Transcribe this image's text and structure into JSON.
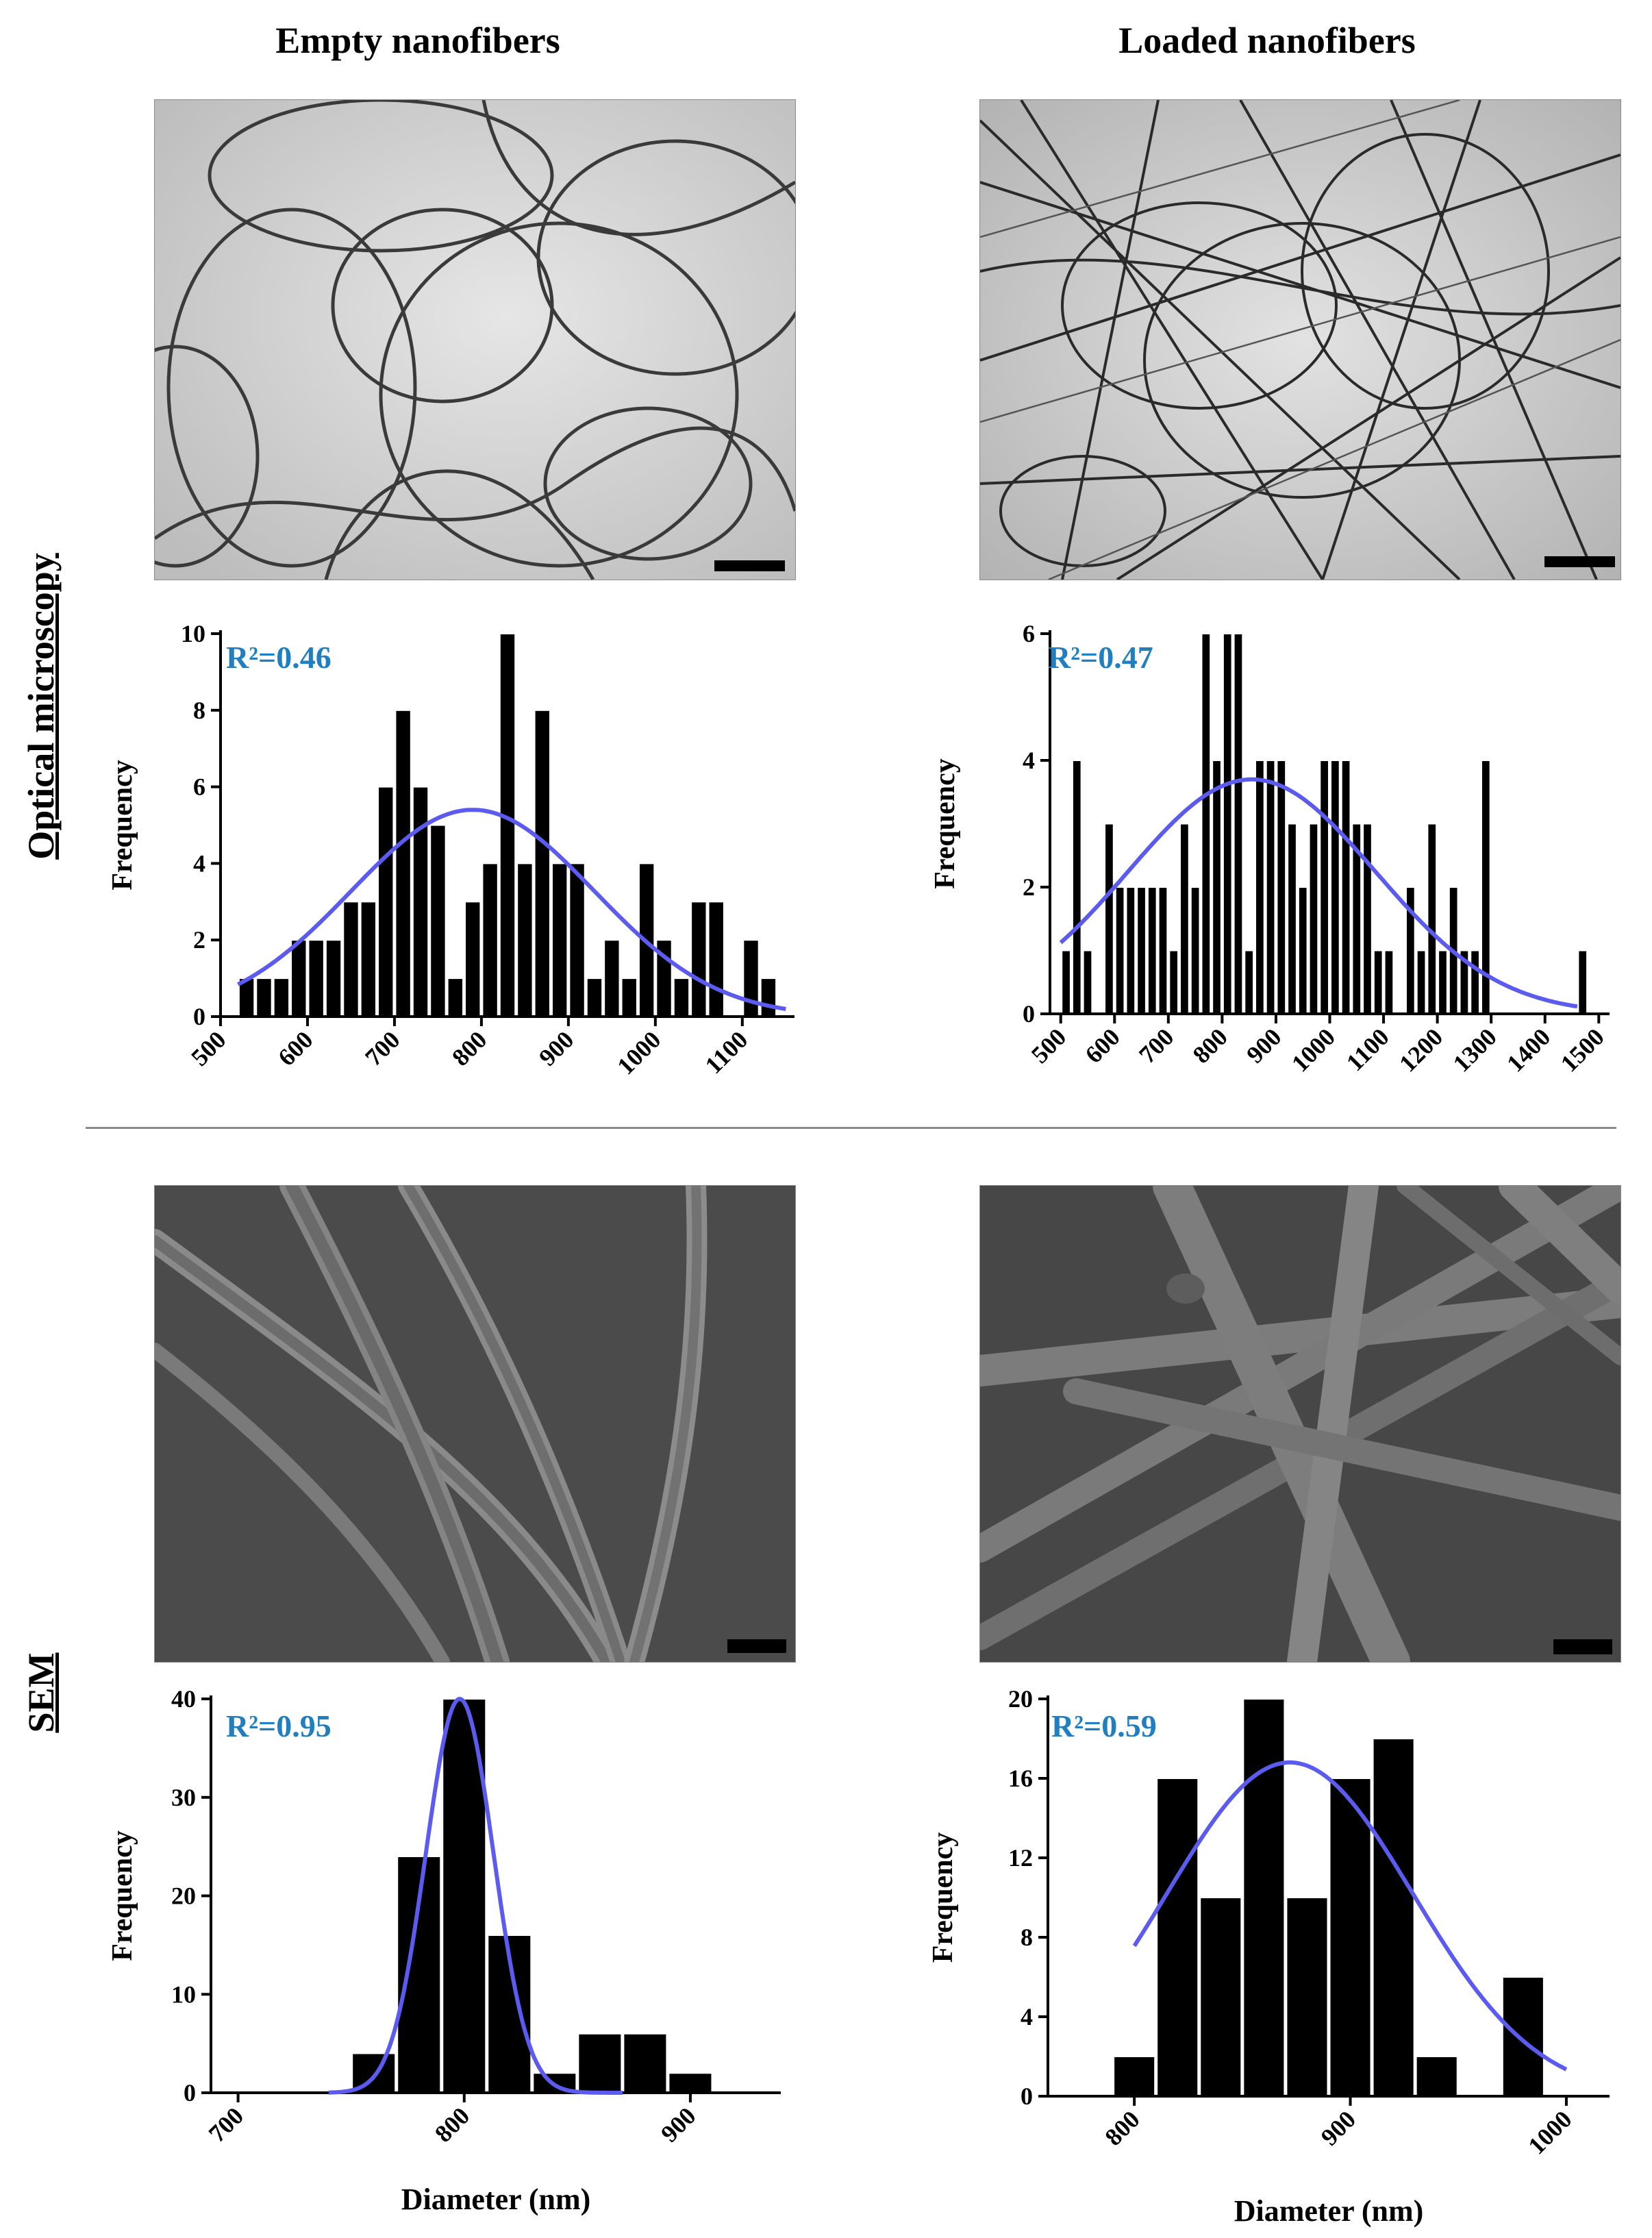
{
  "titles": {
    "empty": "Empty nanofibers",
    "loaded": "Loaded nanofibers",
    "optical": "Optical microscopy",
    "sem": "SEM"
  },
  "colors": {
    "fit": "#5b5bf0",
    "r2": "#1f7fc0",
    "bar": "#000000"
  },
  "chart_data": [
    {
      "id": "om-empty",
      "type": "bar",
      "title": "",
      "xlabel": "",
      "ylabel": "Frequency",
      "annotation": "R²=0.46",
      "xlim": [
        500,
        1160
      ],
      "ylim": [
        0,
        10
      ],
      "xticks": [
        500,
        600,
        700,
        800,
        900,
        1000,
        1100
      ],
      "yticks": [
        0,
        2,
        4,
        6,
        8,
        10
      ],
      "bin_width": 20,
      "x": [
        530,
        550,
        570,
        590,
        610,
        630,
        650,
        670,
        690,
        710,
        730,
        750,
        770,
        790,
        810,
        830,
        850,
        870,
        890,
        910,
        930,
        950,
        970,
        990,
        1010,
        1030,
        1050,
        1070,
        1090,
        1110,
        1130
      ],
      "values": [
        1,
        1,
        1,
        2,
        2,
        2,
        3,
        3,
        6,
        8,
        6,
        5,
        1,
        3,
        4,
        10,
        4,
        8,
        4,
        4,
        1,
        2,
        1,
        4,
        2,
        1,
        3,
        3,
        0,
        2,
        1
      ],
      "fit": {
        "mean": 790,
        "sd": 140,
        "amp": 5.4,
        "from": 520,
        "to": 1150
      }
    },
    {
      "id": "om-loaded",
      "type": "bar",
      "title": "",
      "xlabel": "",
      "ylabel": "Frequency",
      "annotation": "R²=0.47",
      "xlim": [
        480,
        1520
      ],
      "ylim": [
        0,
        6
      ],
      "xticks": [
        500,
        600,
        700,
        800,
        900,
        1000,
        1100,
        1200,
        1300,
        1400,
        1500
      ],
      "yticks": [
        0,
        2,
        4,
        6
      ],
      "bin_width": 20,
      "x": [
        510,
        530,
        550,
        570,
        590,
        610,
        630,
        650,
        670,
        690,
        710,
        730,
        750,
        770,
        790,
        810,
        830,
        850,
        870,
        890,
        910,
        930,
        950,
        970,
        990,
        1010,
        1030,
        1050,
        1070,
        1090,
        1110,
        1130,
        1150,
        1170,
        1190,
        1210,
        1230,
        1250,
        1270,
        1290,
        1310,
        1330,
        1350,
        1370,
        1390,
        1410,
        1430,
        1450,
        1470
      ],
      "values": [
        1,
        4,
        1,
        0,
        3,
        2,
        2,
        2,
        2,
        2,
        1,
        3,
        2,
        6,
        4,
        6,
        6,
        1,
        4,
        4,
        4,
        3,
        2,
        3,
        4,
        4,
        4,
        3,
        3,
        1,
        1,
        0,
        2,
        1,
        3,
        1,
        2,
        1,
        1,
        4,
        0,
        0,
        0,
        0,
        0,
        0,
        0,
        0,
        1
      ],
      "fit": {
        "mean": 855,
        "sd": 230,
        "amp": 3.7,
        "from": 500,
        "to": 1460
      }
    },
    {
      "id": "sem-empty",
      "type": "bar",
      "title": "",
      "xlabel": "Diameter (nm)",
      "ylabel": "Frequency",
      "annotation": "R²=0.95",
      "xlim": [
        688,
        940
      ],
      "ylim": [
        0,
        40
      ],
      "xticks": [
        700,
        800,
        900
      ],
      "yticks": [
        0,
        10,
        20,
        30,
        40
      ],
      "bin_width": 20,
      "x": [
        760,
        780,
        800,
        820,
        840,
        860,
        880,
        900
      ],
      "values": [
        4,
        24,
        40,
        16,
        2,
        6,
        6,
        2
      ],
      "fit": {
        "mean": 798,
        "sd": 15,
        "amp": 40,
        "from": 740,
        "to": 870
      }
    },
    {
      "id": "sem-loaded",
      "type": "bar",
      "title": "",
      "xlabel": "Diameter (nm)",
      "ylabel": "Frequency",
      "annotation": "R²=0.59",
      "xlim": [
        760,
        1020
      ],
      "ylim": [
        0,
        20
      ],
      "xticks": [
        800,
        900,
        1000
      ],
      "yticks": [
        0,
        4,
        8,
        12,
        16,
        20
      ],
      "bin_width": 20,
      "x": [
        800,
        820,
        840,
        860,
        880,
        900,
        920,
        940,
        960,
        980
      ],
      "values": [
        2,
        16,
        10,
        20,
        10,
        16,
        18,
        2,
        0,
        6
      ],
      "fit": {
        "mean": 872,
        "sd": 57,
        "amp": 16.8,
        "from": 800,
        "to": 1000
      }
    }
  ]
}
